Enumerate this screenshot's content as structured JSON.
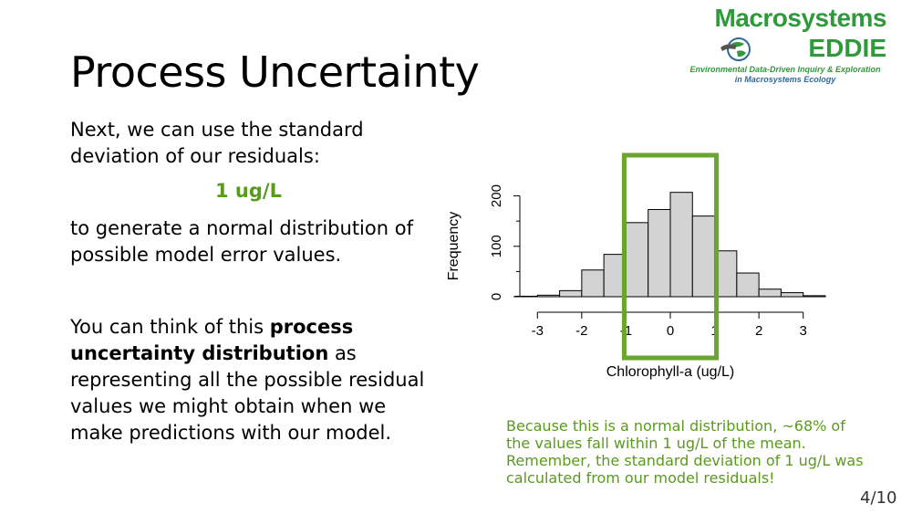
{
  "slide": {
    "title": "Process Uncertainty",
    "intro": "Next, we can use the standard deviation of our residuals:",
    "sd_value": "1 ug/L",
    "generate_text": "to generate a normal distribution of possible model error values.",
    "think_prefix": "You can think of this ",
    "think_bold": "process uncertainty distribution",
    "think_suffix": " as representing all the possible residual values we might obtain when we make predictions with our model.",
    "note": "Because this is a normal distribution, ~68% of the values fall within 1 ug/L of the mean. Remember, the standard deviation of 1 ug/L was calculated from our model residuals!",
    "page_number": "4/10"
  },
  "logo": {
    "line1": "Macrosystems",
    "line2": "EDDIE",
    "line3": "Environmental Data-Driven Inquiry & Exploration",
    "line4": "in Macrosystems Ecology",
    "green": "#2e9a3a"
  },
  "colors": {
    "accent_green": "#5a9a1e",
    "highlight_box": "#6aa62e",
    "bar_fill": "#d3d3d3"
  },
  "chart_data": {
    "type": "bar",
    "subtype": "histogram",
    "xlabel": "Chlorophyll-a (ug/L)",
    "ylabel": "Frequency",
    "x_ticks": [
      -3,
      -2,
      -1,
      0,
      1,
      2,
      3
    ],
    "y_ticks": [
      0,
      100,
      200
    ],
    "bin_edges": [
      -3.5,
      -3.0,
      -2.5,
      -2.0,
      -1.5,
      -1.0,
      -0.5,
      0.0,
      0.5,
      1.0,
      1.5,
      2.0,
      2.5,
      3.0,
      3.5
    ],
    "values": [
      1,
      3,
      12,
      53,
      84,
      147,
      173,
      207,
      160,
      91,
      47,
      15,
      8,
      2
    ],
    "ylim": [
      0,
      230
    ],
    "xlim": [
      -3.5,
      3.5
    ],
    "highlight_range": [
      -1,
      1
    ]
  }
}
